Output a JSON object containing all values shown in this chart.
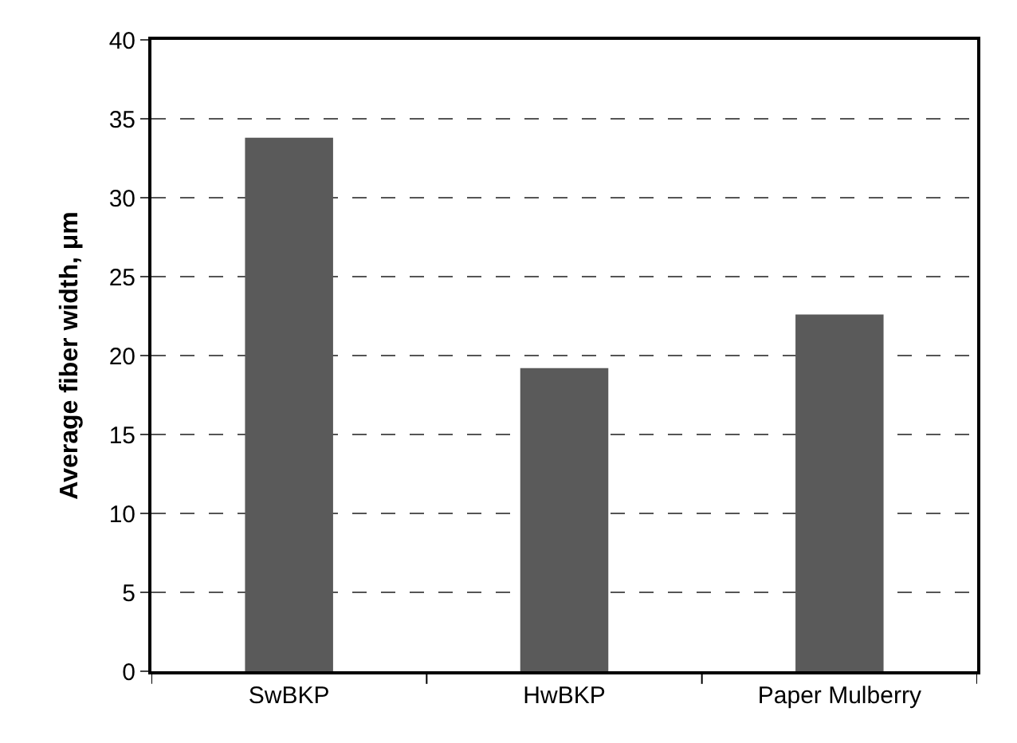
{
  "chart_data": {
    "type": "bar",
    "ylabel": "Average fiber width, μm",
    "categories": [
      "SwBKP",
      "HwBKP",
      "Paper Mulberry"
    ],
    "values": [
      33.8,
      19.2,
      22.6
    ],
    "color": "#5a5a5a",
    "ylim": [
      0,
      40
    ],
    "yticks": [
      0,
      5,
      10,
      15,
      20,
      25,
      30,
      35,
      40
    ],
    "grid": "y"
  }
}
